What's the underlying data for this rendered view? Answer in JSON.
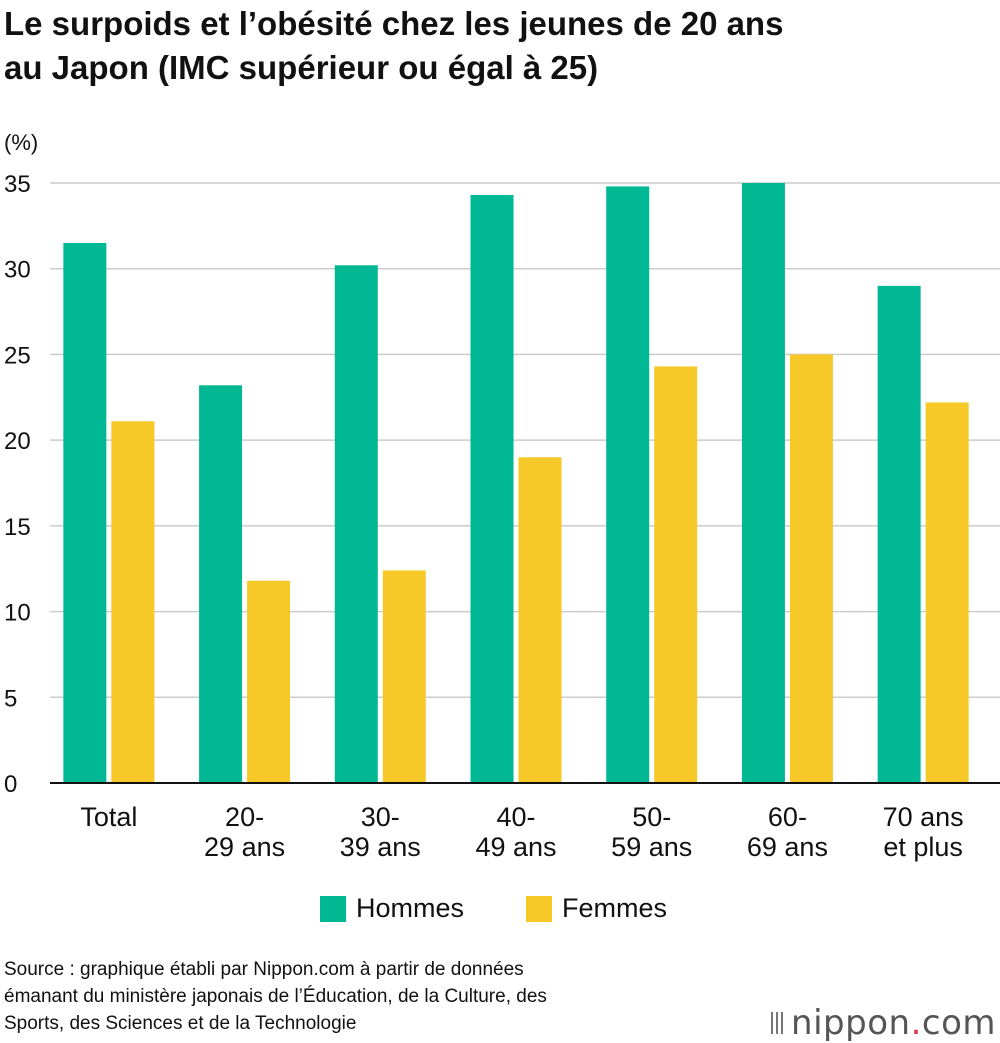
{
  "title_lines": [
    "Le surpoids et l’obésité chez les jeunes de 20 ans",
    "au Japon (IMC supérieur ou égal à 25)"
  ],
  "colors": {
    "hommes": "#00b894",
    "femmes": "#f6c928",
    "grid": "#cccccc",
    "axis": "#111111"
  },
  "chart_data": {
    "type": "bar",
    "title": "Le surpoids et l’obésité chez les jeunes de 20 ans au Japon (IMC supérieur ou égal à 25)",
    "ylabel": "(%)",
    "xlabel": "",
    "ylim": [
      0,
      35
    ],
    "yticks": [
      0,
      5,
      10,
      15,
      20,
      25,
      30,
      35
    ],
    "grid": true,
    "legend_position": "bottom",
    "categories": [
      [
        "Total"
      ],
      [
        "20-",
        "29 ans"
      ],
      [
        "30-",
        "39 ans"
      ],
      [
        "40-",
        "49 ans"
      ],
      [
        "50-",
        "59 ans"
      ],
      [
        "60-",
        "69 ans"
      ],
      [
        "70 ans",
        "et plus"
      ]
    ],
    "series": [
      {
        "name": "Hommes",
        "values": [
          31.5,
          23.2,
          30.2,
          34.3,
          34.8,
          35.0,
          29.0
        ]
      },
      {
        "name": "Femmes",
        "values": [
          21.1,
          11.8,
          12.4,
          19.0,
          24.3,
          25.0,
          22.2
        ]
      }
    ]
  },
  "legend": {
    "hommes": "Hommes",
    "femmes": "Femmes"
  },
  "source_lines": [
    "Source : graphique établi par Nippon.com à partir de données",
    "émanant du ministère japonais de l’Éducation, de la Culture, des",
    "Sports, des Sciences et de la Technologie"
  ],
  "logo": {
    "name": "nippon",
    "dot": ".",
    "tld": "com"
  }
}
